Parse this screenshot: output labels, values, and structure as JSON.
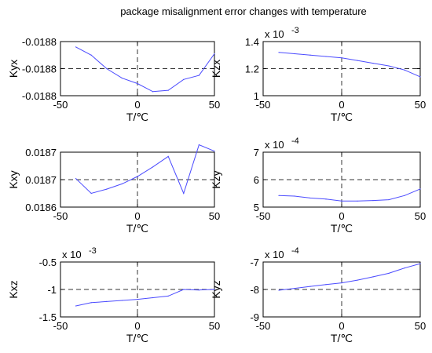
{
  "title": "package misalignment error changes with temperature",
  "colors": {
    "series": "#4b4bff",
    "axis": "#000000",
    "ref": "#333333"
  },
  "chart_data": [
    {
      "type": "line",
      "ylabel": "Kyx",
      "xlabel": "T/℃",
      "xlim": [
        -50,
        50
      ],
      "ylim": [
        -0.0188002,
        -0.0187998
      ],
      "xticks": [
        "-50",
        "0",
        "50"
      ],
      "yticks": [
        "-0.0188",
        "-0.0188",
        "-0.0188"
      ],
      "multiplier": "",
      "x": [
        -40,
        -30,
        -20,
        -10,
        0,
        10,
        20,
        30,
        40,
        50
      ],
      "values": [
        -0.01879984,
        -0.0187999,
        -0.0188,
        -0.01880007,
        -0.01880011,
        -0.01880017,
        -0.01880016,
        -0.01880008,
        -0.01880005,
        -0.01879989
      ]
    },
    {
      "type": "line",
      "ylabel": "Kzx",
      "xlabel": "T/℃",
      "xlim": [
        -50,
        50
      ],
      "ylim": [
        1.0,
        1.4
      ],
      "xticks": [
        "-50",
        "0",
        "50"
      ],
      "yticks": [
        "1",
        "1.2",
        "1.4"
      ],
      "multiplier": "x 10",
      "multiplier_exp": "-3",
      "x": [
        -40,
        -30,
        -20,
        -10,
        0,
        10,
        20,
        30,
        40,
        50
      ],
      "values": [
        1.32,
        1.31,
        1.3,
        1.29,
        1.28,
        1.26,
        1.24,
        1.22,
        1.19,
        1.14
      ]
    },
    {
      "type": "line",
      "ylabel": "Kxy",
      "xlabel": "T/℃",
      "xlim": [
        -50,
        50
      ],
      "ylim": [
        0.018664,
        0.018716
      ],
      "xticks": [
        "-50",
        "0",
        "50"
      ],
      "yticks": [
        "0.0186",
        "0.0187",
        "0.0187"
      ],
      "multiplier": "",
      "x": [
        -40,
        -30,
        -20,
        -10,
        0,
        10,
        20,
        30,
        40,
        50
      ],
      "values": [
        0.018691,
        0.018677,
        0.018681,
        0.018686,
        0.018693,
        0.018702,
        0.018712,
        0.018677,
        0.018723,
        0.018717
      ]
    },
    {
      "type": "line",
      "ylabel": "Kzy",
      "xlabel": "T/℃",
      "xlim": [
        -50,
        50
      ],
      "ylim": [
        5,
        7
      ],
      "xticks": [
        "-50",
        "0",
        "50"
      ],
      "yticks": [
        "5",
        "6",
        "7"
      ],
      "multiplier": "x 10",
      "multiplier_exp": "-4",
      "x": [
        -40,
        -30,
        -20,
        -10,
        0,
        10,
        20,
        30,
        40,
        50
      ],
      "values": [
        5.42,
        5.4,
        5.33,
        5.29,
        5.22,
        5.22,
        5.24,
        5.27,
        5.42,
        5.66
      ]
    },
    {
      "type": "line",
      "ylabel": "Kxz",
      "xlabel": "T/℃",
      "xlim": [
        -50,
        50
      ],
      "ylim": [
        -1.5,
        -0.5
      ],
      "xticks": [
        "-50",
        "0",
        "50"
      ],
      "yticks": [
        "-1.5",
        "-1",
        "-0.5"
      ],
      "multiplier": "x 10",
      "multiplier_exp": "-3",
      "x": [
        -40,
        -30,
        -20,
        -10,
        0,
        10,
        20,
        30,
        40,
        50
      ],
      "values": [
        -1.3,
        -1.24,
        -1.22,
        -1.2,
        -1.18,
        -1.15,
        -1.12,
        -1.0,
        -1.01,
        -1.0
      ]
    },
    {
      "type": "line",
      "ylabel": "Kyz",
      "xlabel": "T/℃",
      "xlim": [
        -50,
        50
      ],
      "ylim": [
        -9,
        -7
      ],
      "xticks": [
        "-50",
        "0",
        "50"
      ],
      "yticks": [
        "-9",
        "-8",
        "-7"
      ],
      "multiplier": "x 10",
      "multiplier_exp": "-4",
      "x": [
        -40,
        -30,
        -20,
        -10,
        0,
        10,
        20,
        30,
        40,
        50
      ],
      "values": [
        -8.03,
        -7.96,
        -7.89,
        -7.82,
        -7.76,
        -7.66,
        -7.54,
        -7.41,
        -7.22,
        -7.06
      ]
    }
  ]
}
